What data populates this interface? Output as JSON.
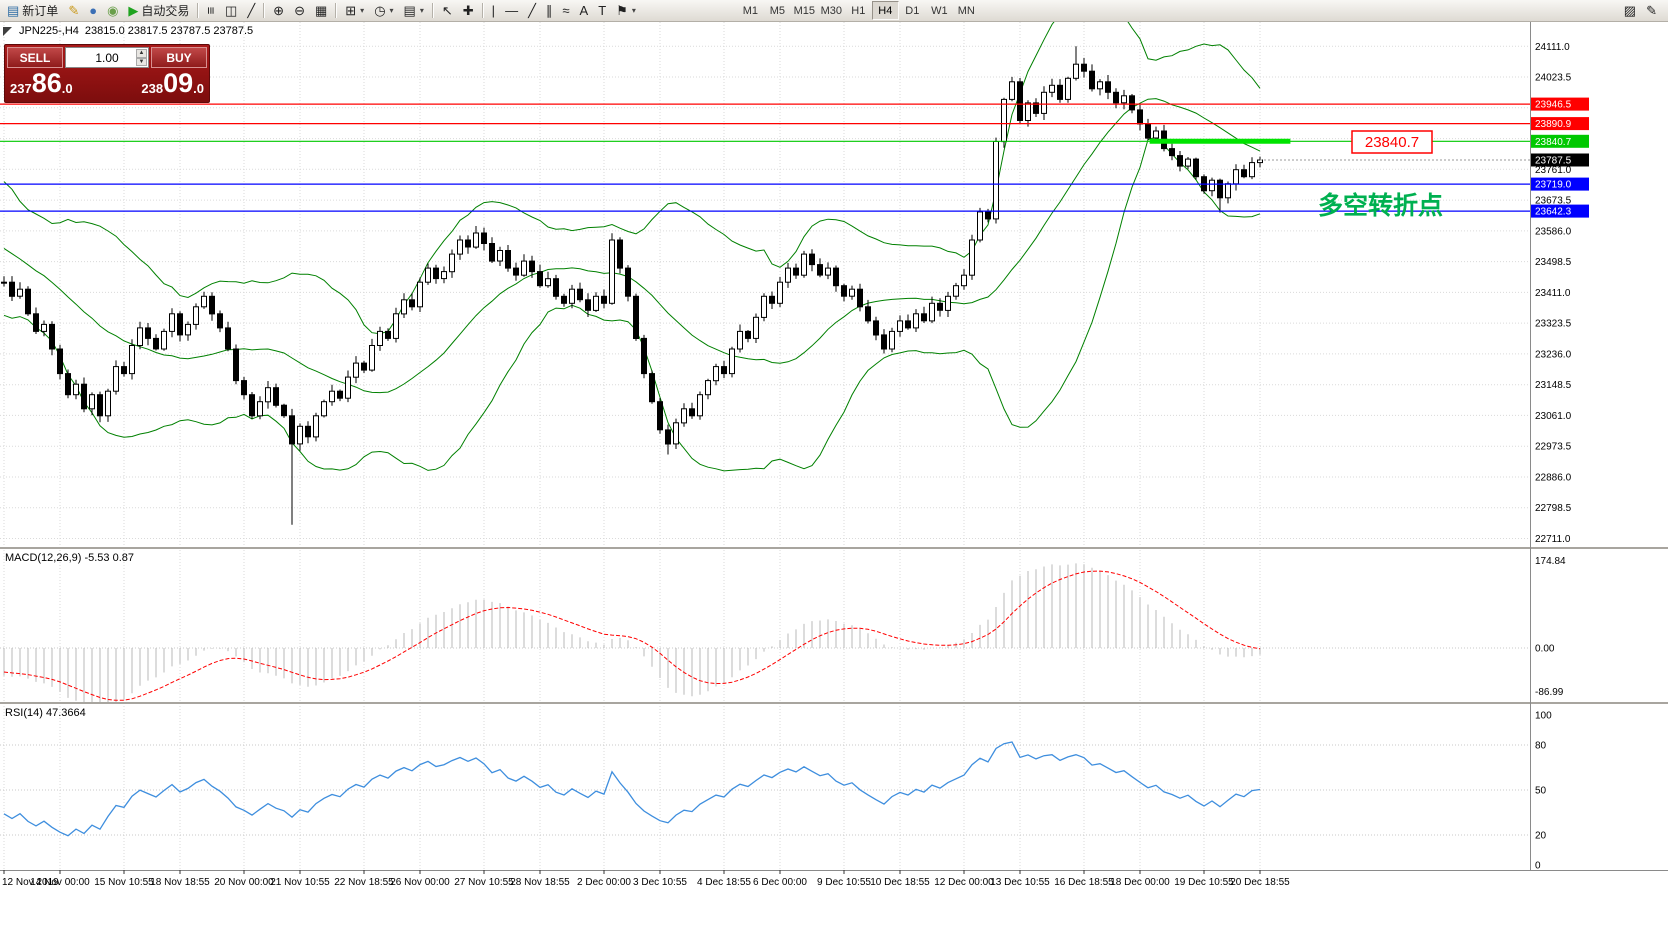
{
  "toolbar": {
    "items": [
      {
        "name": "new-order",
        "glyph": "▤",
        "glyph_color": "#2e6da4",
        "label": "新订单"
      },
      {
        "name": "metaeditor",
        "glyph": "✎",
        "glyph_color": "#c9991c"
      },
      {
        "name": "mql5-community",
        "glyph": "●",
        "glyph_color": "#3b6fb5"
      },
      {
        "name": "expert-advisors",
        "glyph": "◉",
        "glyph_color": "#6a9f4a"
      },
      {
        "name": "autotrading",
        "glyph": "▶",
        "glyph_color": "#1fa31f",
        "label": "自动交易"
      },
      {
        "sep": true
      },
      {
        "name": "bar-chart",
        "glyph": "≡",
        "rot": true
      },
      {
        "name": "candlestick-chart",
        "glyph": "◫"
      },
      {
        "name": "line-chart",
        "glyph": "╱"
      },
      {
        "sep": true
      },
      {
        "name": "zoom-in",
        "glyph": "⊕"
      },
      {
        "name": "zoom-out",
        "glyph": "⊖"
      },
      {
        "name": "tile-windows",
        "glyph": "▦"
      },
      {
        "sep": true
      },
      {
        "name": "indicators",
        "glyph": "⊞",
        "caret": true
      },
      {
        "name": "periods",
        "glyph": "◷",
        "caret": true
      },
      {
        "name": "templates",
        "glyph": "▤",
        "caret": true
      },
      {
        "sep": true
      },
      {
        "name": "cursor",
        "glyph": "↖"
      },
      {
        "name": "crosshair",
        "glyph": "✚"
      },
      {
        "sep": true
      },
      {
        "name": "vertical-line",
        "glyph": "|"
      },
      {
        "name": "horizontal-line",
        "glyph": "—"
      },
      {
        "name": "trendline",
        "glyph": "╱"
      },
      {
        "name": "equidistant-channel",
        "glyph": "∥"
      },
      {
        "name": "fibonacci",
        "glyph": "≈"
      },
      {
        "name": "text",
        "glyph": "A"
      },
      {
        "name": "text-label",
        "glyph": "T"
      },
      {
        "name": "arrows",
        "glyph": "⚑",
        "caret": true
      }
    ],
    "right_items": [
      {
        "name": "chart-windows",
        "glyph": "▨"
      },
      {
        "name": "customize-toolbar",
        "glyph": "✎"
      }
    ],
    "timeframes": [
      "M1",
      "M5",
      "M15",
      "M30",
      "H1",
      "H4",
      "D1",
      "W1",
      "MN"
    ],
    "active_timeframe": "H4"
  },
  "chart": {
    "symbol_period": "JPN225-,H4",
    "ohlc_text": "23815.0 23817.5 23787.5 23787.5",
    "annotation": {
      "text": "多空转折点",
      "color": "#00B050"
    },
    "floating_label": {
      "text": "23840.7",
      "color": "#FF0000"
    }
  },
  "one_click": {
    "sell_label": "SELL",
    "buy_label": "BUY",
    "volume": "1.00",
    "sell_price": "23786.0",
    "buy_price": "23809.0"
  },
  "chart_data": {
    "type": "candlestick",
    "symbol": "JPN225-",
    "timeframe": "H4",
    "pre_closes": [
      23650,
      23700,
      23720,
      23680,
      23640,
      23600,
      23630,
      23580,
      23550,
      23560,
      23520,
      23480,
      23500,
      23460,
      23430,
      23470,
      23440,
      23460,
      23420,
      23440
    ],
    "candles_close": [
      23440,
      23400,
      23420,
      23350,
      23300,
      23320,
      23250,
      23180,
      23120,
      23150,
      23080,
      23120,
      23060,
      23130,
      23200,
      23180,
      23260,
      23310,
      23280,
      23250,
      23300,
      23350,
      23290,
      23320,
      23370,
      23400,
      23350,
      23310,
      23250,
      23160,
      23120,
      23060,
      23100,
      23140,
      23090,
      23060,
      22980,
      23030,
      23000,
      23060,
      23100,
      23130,
      23110,
      23170,
      23210,
      23190,
      23260,
      23300,
      23280,
      23350,
      23390,
      23370,
      23440,
      23480,
      23450,
      23470,
      23520,
      23560,
      23540,
      23580,
      23550,
      23500,
      23530,
      23480,
      23460,
      23500,
      23470,
      23430,
      23450,
      23400,
      23380,
      23420,
      23390,
      23360,
      23400,
      23380,
      23560,
      23480,
      23400,
      23280,
      23180,
      23100,
      23020,
      22980,
      23040,
      23080,
      23060,
      23120,
      23160,
      23200,
      23180,
      23250,
      23300,
      23280,
      23340,
      23400,
      23380,
      23440,
      23480,
      23460,
      23520,
      23490,
      23460,
      23480,
      23430,
      23400,
      23420,
      23370,
      23330,
      23290,
      23250,
      23300,
      23330,
      23310,
      23350,
      23330,
      23380,
      23360,
      23400,
      23430,
      23460,
      23560,
      23640,
      23620,
      23840,
      23960,
      24010,
      23900,
      23950,
      23920,
      23980,
      24000,
      23960,
      24020,
      24060,
      24040,
      23990,
      24010,
      23980,
      23950,
      23970,
      23930,
      23890,
      23850,
      23870,
      23820,
      23800,
      23770,
      23790,
      23740,
      23700,
      23730,
      23680,
      23720,
      23760,
      23740,
      23780,
      23787.5
    ],
    "special_wicks": {
      "36": {
        "low": 22750
      },
      "83": {
        "low": 22950
      },
      "134": {
        "high": 24111
      },
      "152": {
        "low": 23638
      }
    },
    "bollinger": {
      "period": 20,
      "deviation": 2,
      "color": "#008000"
    },
    "levels": [
      {
        "price": 23946.5,
        "label": "23946.5",
        "color": "#FF0000"
      },
      {
        "price": 23890.9,
        "label": "23890.9",
        "color": "#FF0000"
      },
      {
        "price": 23840.7,
        "label": "23840.7",
        "color": "#00C800"
      },
      {
        "price": 23719.0,
        "label": "23719.0",
        "color": "#0000FF"
      },
      {
        "price": 23642.3,
        "label": "23642.3",
        "color": "#0000FF"
      }
    ],
    "segment": {
      "price": 23840.7,
      "from_index": 143.2,
      "to_index": 160.8,
      "color": "#00E400",
      "width": 5
    },
    "current": {
      "price": 23787.5,
      "label": "23787.5",
      "chip_color": "#000000"
    },
    "y_axis": {
      "labels": [
        "24111.0",
        "24023.5",
        "23761.0",
        "23673.5",
        "23586.0",
        "23498.5",
        "23411.0",
        "23323.5",
        "23236.0",
        "23148.5",
        "23061.0",
        "22973.5",
        "22886.0",
        "22798.5",
        "22711.0"
      ],
      "grid": {
        "start": 24111.0,
        "step": 87.5,
        "count": 17
      }
    },
    "x_axis_labels": [
      "12 Nov 2019",
      "14 Nov 00:00",
      "15 Nov 10:55",
      "18 Nov 18:55",
      "20 Nov 00:00",
      "21 Nov 10:55",
      "22 Nov 18:55",
      "26 Nov 00:00",
      "27 Nov 10:55",
      "28 Nov 18:55",
      "2 Dec 00:00",
      "3 Dec 10:55",
      "4 Dec 18:55",
      "6 Dec 00:00",
      "9 Dec 10:55",
      "10 Dec 18:55",
      "12 Dec 00:00",
      "13 Dec 10:55",
      "16 Dec 18:55",
      "18 Dec 00:00",
      "19 Dec 10:55",
      "20 Dec 18:55"
    ],
    "macd": {
      "title": "MACD(12,26,9)",
      "values": "-5.53 0.87",
      "fast": 12,
      "slow": 26,
      "signal": 9,
      "axis": [
        {
          "label": "174.84",
          "value": 174.84
        },
        {
          "label": "0.00",
          "value": 0
        },
        {
          "label": "-86.99",
          "value": -86.99
        }
      ],
      "histogram_color": "#b9b9b9",
      "signal_color": "#FF0000"
    },
    "rsi": {
      "title": "RSI(14)",
      "value": "47.3664",
      "period": 14,
      "axis": [
        {
          "label": "100",
          "value": 100
        },
        {
          "label": "80",
          "value": 80
        },
        {
          "label": "50",
          "value": 50
        },
        {
          "label": "20",
          "value": 20
        },
        {
          "label": "0",
          "value": 0
        }
      ],
      "levels": [
        20,
        50,
        80
      ],
      "color": "#3E8EDE"
    }
  }
}
